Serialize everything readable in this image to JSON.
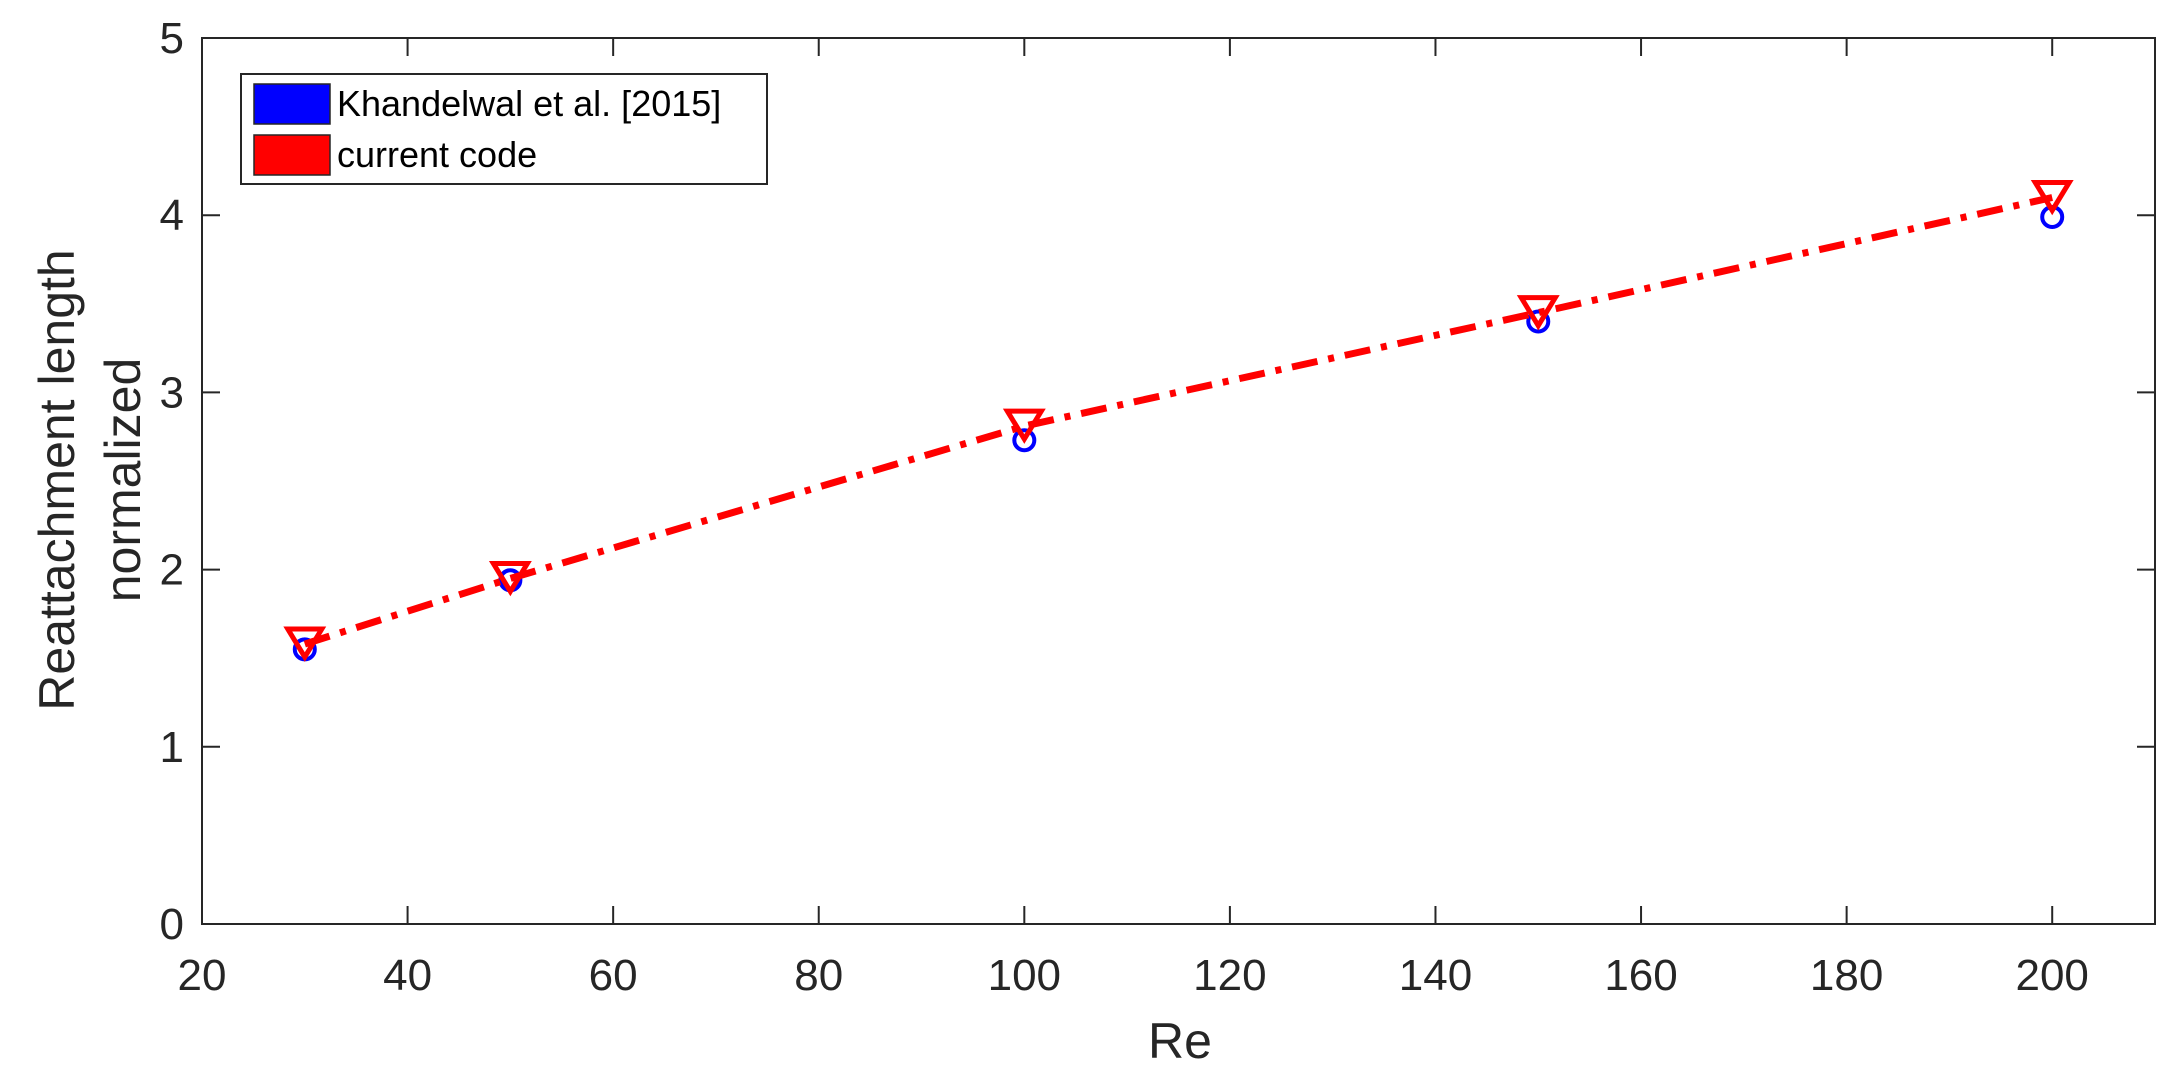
{
  "chart_data": {
    "type": "line",
    "xlabel": "Re",
    "ylabel_lines": [
      "Reattachment length",
      "normalized"
    ],
    "xlim": [
      20,
      210
    ],
    "ylim": [
      0,
      5
    ],
    "xticks": [
      20,
      40,
      60,
      80,
      100,
      120,
      140,
      160,
      180,
      200
    ],
    "yticks": [
      0,
      1,
      2,
      3,
      4,
      5
    ],
    "grid": false,
    "legend_position": "top-left",
    "series": [
      {
        "name": "Khandelwal et al. [2015]",
        "marker": "circle",
        "line": "none",
        "color": "#0000ff",
        "x": [
          30,
          50,
          100,
          150,
          200
        ],
        "y": [
          1.55,
          1.94,
          2.73,
          3.4,
          3.99
        ]
      },
      {
        "name": "current code",
        "marker": "triangle-down",
        "line": "dash-dot",
        "color": "#ff0000",
        "x": [
          30,
          50,
          100,
          150,
          200
        ],
        "y": [
          1.58,
          1.95,
          2.81,
          3.45,
          4.1
        ]
      }
    ]
  }
}
